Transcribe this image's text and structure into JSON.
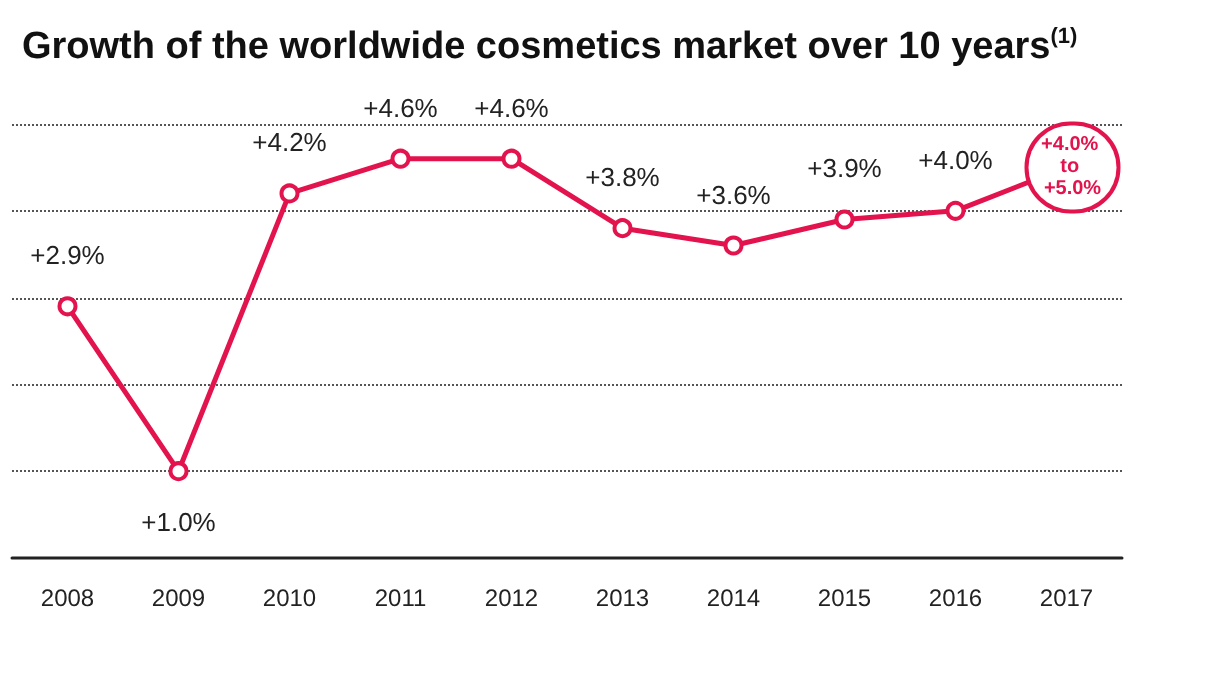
{
  "chart_data": {
    "type": "line",
    "title": "Growth of the worldwide cosmetics market over 10 years$^{(1)}$",
    "categories": [
      "2008",
      "2009",
      "2010",
      "2011",
      "2012",
      "2013",
      "2014",
      "2015",
      "2016",
      "2017"
    ],
    "series": [
      {
        "color": "#e2134d",
        "values": [
          2.9,
          1.0,
          4.2,
          4.6,
          4.6,
          3.8,
          3.6,
          3.9,
          4.0,
          4.5
        ],
        "value_labels": [
          "+2.9%",
          "+1.0%",
          "+4.2%",
          "+4.6%",
          "+4.6%",
          "+3.8%",
          "+3.6%",
          "+3.9%",
          "+4.0%",
          null
        ]
      }
    ],
    "annotations": [
      {
        "text": "+4.0% to +5.0%",
        "x": "2017",
        "y": 4.5
      }
    ],
    "yticks": [
      {
        "value": 1,
        "label": null
      },
      {
        "value": 2,
        "label": null
      },
      {
        "value": 3,
        "label": null
      },
      {
        "value": 4,
        "label": null
      },
      {
        "value": 5,
        "label": null
      }
    ],
    "grid": "y",
    "marker": "circle",
    "line_style": "solid",
    "tick_labels": "x"
  }
}
